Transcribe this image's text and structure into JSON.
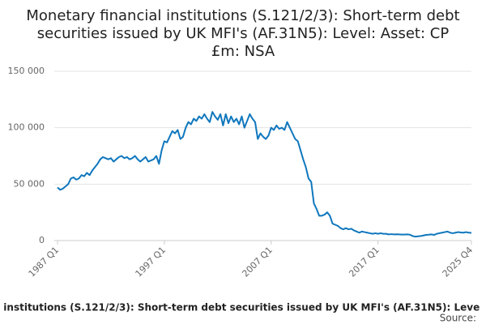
{
  "chart_data": {
    "type": "line",
    "title": [
      "Monetary financial institutions (S.121/2/3): Short-term debt",
      "securities issued by UK MFI's (AF.31N5): Level: Asset: CP",
      "£m: NSA"
    ],
    "footer": "l institutions (S.121/2/3): Short-term debt securities issued by UK MFI's (AF.31N5): Leve",
    "source": "Source:",
    "color": "#0f77bd",
    "grid": true,
    "categories": [
      "1987 Q1",
      null,
      null,
      null,
      null,
      null,
      null,
      null,
      null,
      null,
      null,
      null,
      null,
      null,
      null,
      null,
      null,
      null,
      null,
      null,
      null,
      null,
      null,
      null,
      null,
      null,
      null,
      null,
      null,
      null,
      null,
      null,
      null,
      null,
      null,
      null,
      null,
      null,
      null,
      null,
      "1997 Q1",
      null,
      null,
      null,
      null,
      null,
      null,
      null,
      null,
      null,
      null,
      null,
      null,
      null,
      null,
      null,
      null,
      null,
      null,
      null,
      null,
      null,
      null,
      null,
      null,
      null,
      null,
      null,
      null,
      null,
      null,
      null,
      null,
      null,
      null,
      null,
      null,
      null,
      null,
      null,
      "2007 Q1",
      null,
      null,
      null,
      null,
      null,
      null,
      null,
      null,
      null,
      null,
      null,
      null,
      null,
      null,
      null,
      null,
      null,
      null,
      null,
      null,
      null,
      null,
      null,
      null,
      null,
      null,
      null,
      null,
      null,
      null,
      null,
      null,
      null,
      null,
      null,
      null,
      null,
      null,
      null,
      "2017 Q1",
      null,
      null,
      null,
      null,
      null,
      null,
      null,
      null,
      null,
      null,
      null,
      null,
      null,
      null,
      null,
      null,
      null,
      null,
      null,
      null,
      null,
      null,
      null,
      null,
      null,
      null,
      null,
      null,
      null,
      null,
      null,
      null,
      null,
      null,
      "2025 Q4"
    ],
    "values": [
      47000,
      45000,
      46000,
      48000,
      50000,
      55000,
      56000,
      54000,
      55000,
      58000,
      57000,
      60000,
      58000,
      62000,
      65000,
      68000,
      72000,
      74000,
      73000,
      72000,
      73000,
      70000,
      72000,
      74000,
      75000,
      73000,
      74000,
      72000,
      73000,
      75000,
      72000,
      70000,
      72000,
      74000,
      70000,
      71000,
      72000,
      75000,
      68000,
      80000,
      88000,
      87000,
      92000,
      97000,
      95000,
      98000,
      90000,
      92000,
      100000,
      105000,
      103000,
      108000,
      106000,
      110000,
      108000,
      112000,
      108000,
      105000,
      114000,
      110000,
      107000,
      112000,
      102000,
      112000,
      104000,
      110000,
      105000,
      108000,
      103000,
      110000,
      100000,
      106000,
      112000,
      108000,
      105000,
      90000,
      95000,
      92000,
      90000,
      93000,
      100000,
      98000,
      102000,
      99000,
      100000,
      98000,
      105000,
      100000,
      95000,
      90000,
      88000,
      80000,
      72000,
      65000,
      55000,
      52000,
      33000,
      28000,
      22000,
      22000,
      23000,
      25000,
      22000,
      15000,
      14000,
      13000,
      11000,
      10000,
      11000,
      10000,
      10500,
      9000,
      8000,
      7000,
      8000,
      7500,
      7000,
      6500,
      6000,
      6500,
      6000,
      6500,
      6000,
      6000,
      5500,
      5700,
      5500,
      5600,
      5500,
      5300,
      5400,
      5500,
      5200,
      4000,
      3500,
      3800,
      4000,
      4500,
      5000,
      5200,
      5500,
      5000,
      6000,
      6500,
      7000,
      7500,
      8000,
      7000,
      6500,
      7000,
      7500,
      7200,
      7000,
      7500,
      7000,
      6800
    ],
    "ylim": [
      0,
      150000
    ],
    "yticks": [
      0,
      {
        "value": 50000,
        "label": "50 000"
      },
      {
        "value": 100000,
        "label": "100 000"
      },
      {
        "value": 150000,
        "label": "150 000"
      }
    ]
  }
}
